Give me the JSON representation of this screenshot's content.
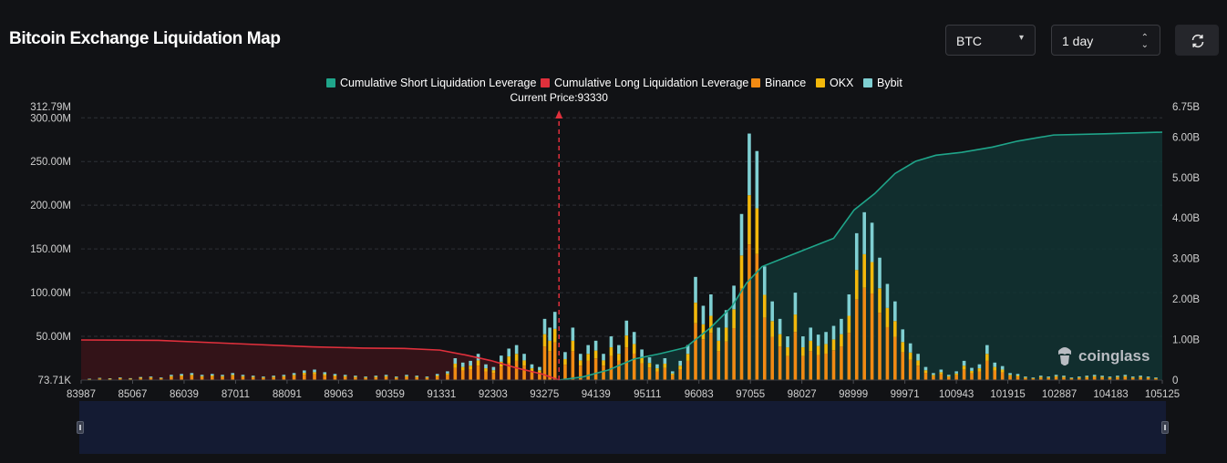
{
  "header": {
    "title": "Bitcoin Exchange Liquidation Map",
    "coin_select": "BTC",
    "range_select": "1 day",
    "refresh_icon": "refresh-icon"
  },
  "watermark": "coinglass",
  "colors": {
    "short_cum": "#1fa58a",
    "long_cum": "#e0303c",
    "binance": "#f08a13",
    "okx": "#f2b80b",
    "bybit": "#7fcfd2",
    "background": "#111215"
  },
  "chart_data": {
    "type": "bar",
    "title": "",
    "current_price_label": "Current Price:93330",
    "current_price": 93330,
    "legend": [
      {
        "name": "Cumulative Short Liquidation Leverage",
        "color": "#1fa58a"
      },
      {
        "name": "Cumulative Long Liquidation Leverage",
        "color": "#e0303c"
      },
      {
        "name": "Binance",
        "color": "#f08a13"
      },
      {
        "name": "OKX",
        "color": "#f2b80b"
      },
      {
        "name": "Bybit",
        "color": "#7fcfd2"
      }
    ],
    "x_range": [
      83987,
      105125
    ],
    "x_ticks": [
      "83987",
      "85067",
      "86039",
      "87011",
      "88091",
      "89063",
      "90359",
      "91331",
      "92303",
      "93275",
      "94139",
      "95111",
      "96083",
      "97055",
      "98027",
      "98999",
      "99971",
      "100943",
      "101915",
      "102887",
      "104183",
      "105125"
    ],
    "y_left": {
      "min": 73710,
      "max": 312790000,
      "ticks": [
        "312.79M",
        "300.00M",
        "250.00M",
        "200.00M",
        "150.00M",
        "100.00M",
        "50.00M",
        "73.71K"
      ]
    },
    "y_right": {
      "min": 0,
      "max": 6750000000,
      "ticks": [
        "6.75B",
        "6.00B",
        "5.00B",
        "4.00B",
        "3.00B",
        "2.00B",
        "1.00B",
        "0"
      ]
    },
    "bars": [
      {
        "price": 84150,
        "total": 1.5
      },
      {
        "price": 84350,
        "total": 2.5
      },
      {
        "price": 84550,
        "total": 2
      },
      {
        "price": 84750,
        "total": 3
      },
      {
        "price": 84950,
        "total": 2.2
      },
      {
        "price": 85150,
        "total": 3.5
      },
      {
        "price": 85350,
        "total": 4
      },
      {
        "price": 85550,
        "total": 3
      },
      {
        "price": 85750,
        "total": 6
      },
      {
        "price": 85950,
        "total": 7
      },
      {
        "price": 86150,
        "total": 8
      },
      {
        "price": 86350,
        "total": 6
      },
      {
        "price": 86550,
        "total": 7
      },
      {
        "price": 86750,
        "total": 6
      },
      {
        "price": 86950,
        "total": 8
      },
      {
        "price": 87150,
        "total": 6
      },
      {
        "price": 87350,
        "total": 5
      },
      {
        "price": 87550,
        "total": 4
      },
      {
        "price": 87750,
        "total": 5
      },
      {
        "price": 87950,
        "total": 6
      },
      {
        "price": 88150,
        "total": 8
      },
      {
        "price": 88350,
        "total": 11
      },
      {
        "price": 88550,
        "total": 12
      },
      {
        "price": 88750,
        "total": 9
      },
      {
        "price": 88950,
        "total": 7
      },
      {
        "price": 89150,
        "total": 6
      },
      {
        "price": 89350,
        "total": 5
      },
      {
        "price": 89550,
        "total": 4
      },
      {
        "price": 89750,
        "total": 5
      },
      {
        "price": 89950,
        "total": 6
      },
      {
        "price": 90150,
        "total": 4
      },
      {
        "price": 90350,
        "total": 6
      },
      {
        "price": 90550,
        "total": 5
      },
      {
        "price": 90750,
        "total": 4
      },
      {
        "price": 90950,
        "total": 7
      },
      {
        "price": 91150,
        "total": 10
      },
      {
        "price": 91300,
        "total": 25
      },
      {
        "price": 91450,
        "total": 20
      },
      {
        "price": 91600,
        "total": 22
      },
      {
        "price": 91750,
        "total": 30
      },
      {
        "price": 91900,
        "total": 18
      },
      {
        "price": 92050,
        "total": 15
      },
      {
        "price": 92200,
        "total": 28
      },
      {
        "price": 92350,
        "total": 36
      },
      {
        "price": 92500,
        "total": 40
      },
      {
        "price": 92650,
        "total": 30
      },
      {
        "price": 92800,
        "total": 18
      },
      {
        "price": 92950,
        "total": 15
      },
      {
        "price": 93050,
        "total": 70
      },
      {
        "price": 93150,
        "total": 60
      },
      {
        "price": 93250,
        "total": 78
      },
      {
        "price": 93450,
        "total": 32
      },
      {
        "price": 93600,
        "total": 60
      },
      {
        "price": 93750,
        "total": 30
      },
      {
        "price": 93900,
        "total": 40
      },
      {
        "price": 94050,
        "total": 45
      },
      {
        "price": 94200,
        "total": 30
      },
      {
        "price": 94350,
        "total": 50
      },
      {
        "price": 94500,
        "total": 40
      },
      {
        "price": 94650,
        "total": 68
      },
      {
        "price": 94800,
        "total": 55
      },
      {
        "price": 94950,
        "total": 35
      },
      {
        "price": 95100,
        "total": 26
      },
      {
        "price": 95250,
        "total": 18
      },
      {
        "price": 95400,
        "total": 25
      },
      {
        "price": 95550,
        "total": 10
      },
      {
        "price": 95700,
        "total": 22
      },
      {
        "price": 95850,
        "total": 40
      },
      {
        "price": 96000,
        "total": 118
      },
      {
        "price": 96150,
        "total": 85
      },
      {
        "price": 96300,
        "total": 98
      },
      {
        "price": 96450,
        "total": 60
      },
      {
        "price": 96600,
        "total": 80
      },
      {
        "price": 96750,
        "total": 108
      },
      {
        "price": 96900,
        "total": 190
      },
      {
        "price": 97050,
        "total": 282
      },
      {
        "price": 97200,
        "total": 262
      },
      {
        "price": 97350,
        "total": 130
      },
      {
        "price": 97500,
        "total": 90
      },
      {
        "price": 97650,
        "total": 70
      },
      {
        "price": 97800,
        "total": 50
      },
      {
        "price": 97950,
        "total": 100
      },
      {
        "price": 98100,
        "total": 50
      },
      {
        "price": 98250,
        "total": 60
      },
      {
        "price": 98400,
        "total": 52
      },
      {
        "price": 98550,
        "total": 55
      },
      {
        "price": 98700,
        "total": 62
      },
      {
        "price": 98850,
        "total": 70
      },
      {
        "price": 99000,
        "total": 98
      },
      {
        "price": 99150,
        "total": 168
      },
      {
        "price": 99300,
        "total": 192
      },
      {
        "price": 99450,
        "total": 180
      },
      {
        "price": 99600,
        "total": 140
      },
      {
        "price": 99750,
        "total": 110
      },
      {
        "price": 99900,
        "total": 90
      },
      {
        "price": 100050,
        "total": 58
      },
      {
        "price": 100200,
        "total": 42
      },
      {
        "price": 100350,
        "total": 30
      },
      {
        "price": 100500,
        "total": 15
      },
      {
        "price": 100650,
        "total": 8
      },
      {
        "price": 100800,
        "total": 12
      },
      {
        "price": 100950,
        "total": 6
      },
      {
        "price": 101100,
        "total": 10
      },
      {
        "price": 101250,
        "total": 22
      },
      {
        "price": 101400,
        "total": 14
      },
      {
        "price": 101550,
        "total": 18
      },
      {
        "price": 101700,
        "total": 40
      },
      {
        "price": 101850,
        "total": 20
      },
      {
        "price": 102000,
        "total": 16
      },
      {
        "price": 102150,
        "total": 8
      },
      {
        "price": 102300,
        "total": 7
      },
      {
        "price": 102450,
        "total": 4
      },
      {
        "price": 102600,
        "total": 3
      },
      {
        "price": 102750,
        "total": 5
      },
      {
        "price": 102900,
        "total": 4
      },
      {
        "price": 103050,
        "total": 6
      },
      {
        "price": 103200,
        "total": 5
      },
      {
        "price": 103350,
        "total": 3
      },
      {
        "price": 103500,
        "total": 4
      },
      {
        "price": 103650,
        "total": 5
      },
      {
        "price": 103800,
        "total": 6
      },
      {
        "price": 103950,
        "total": 5
      },
      {
        "price": 104100,
        "total": 4
      },
      {
        "price": 104250,
        "total": 5
      },
      {
        "price": 104400,
        "total": 6
      },
      {
        "price": 104550,
        "total": 4
      },
      {
        "price": 104700,
        "total": 5
      },
      {
        "price": 104850,
        "total": 4
      },
      {
        "price": 105000,
        "total": 3
      }
    ],
    "bar_unit": "M",
    "long_cumulative": {
      "x": [
        83987,
        85500,
        87000,
        88500,
        89500,
        90300,
        91000,
        91500,
        92000,
        92500,
        93000,
        93330
      ],
      "y": [
        0.99,
        0.98,
        0.9,
        0.82,
        0.79,
        0.78,
        0.74,
        0.62,
        0.48,
        0.3,
        0.15,
        0
      ]
    },
    "short_cumulative": {
      "x": [
        93330,
        93800,
        94300,
        94800,
        95300,
        95800,
        96300,
        96700,
        97000,
        97300,
        97700,
        98200,
        98700,
        99100,
        99500,
        99900,
        100300,
        100700,
        101200,
        101800,
        102300,
        103000,
        104000,
        105125
      ],
      "y": [
        0,
        0.08,
        0.25,
        0.52,
        0.65,
        0.8,
        1.3,
        1.8,
        2.4,
        2.8,
        3.0,
        3.25,
        3.5,
        4.2,
        4.6,
        5.1,
        5.4,
        5.55,
        5.62,
        5.75,
        5.9,
        6.05,
        6.08,
        6.12
      ]
    },
    "long_unit": "B",
    "short_unit": "B"
  }
}
